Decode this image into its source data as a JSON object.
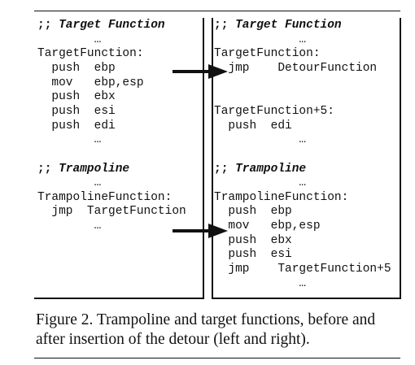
{
  "left_panel": {
    "lines": [
      {
        "text": ";; ",
        "emph": "Target Function"
      },
      {
        "text": "        …"
      },
      {
        "text": "TargetFunction:"
      },
      {
        "text": "  push  ebp"
      },
      {
        "text": "  mov   ebp,esp"
      },
      {
        "text": "  push  ebx"
      },
      {
        "text": "  push  esi"
      },
      {
        "text": "  push  edi"
      },
      {
        "text": "        …"
      },
      {
        "text": ""
      },
      {
        "text": ";; ",
        "emph": "Trampoline"
      },
      {
        "text": "        …"
      },
      {
        "text": "TrampolineFunction:"
      },
      {
        "text": "  jmp  TargetFunction"
      },
      {
        "text": "        …"
      }
    ]
  },
  "right_panel": {
    "lines": [
      {
        "text": ";; ",
        "emph": "Target Function"
      },
      {
        "text": "            …"
      },
      {
        "text": "TargetFunction:"
      },
      {
        "text": "  jmp    DetourFunction"
      },
      {
        "text": ""
      },
      {
        "text": ""
      },
      {
        "text": "TargetFunction+5:"
      },
      {
        "text": "  push  edi"
      },
      {
        "text": "            …"
      },
      {
        "text": ""
      },
      {
        "text": ";; ",
        "emph": "Trampoline"
      },
      {
        "text": "            …"
      },
      {
        "text": "TrampolineFunction:"
      },
      {
        "text": "  push  ebp"
      },
      {
        "text": "  mov   ebp,esp"
      },
      {
        "text": "  push  ebx"
      },
      {
        "text": "  push  esi"
      },
      {
        "text": "  jmp    TargetFunction+5"
      },
      {
        "text": "            …"
      }
    ]
  },
  "caption": "Figure 2.  Trampoline and target functions, before and after insertion of the detour (left and right)."
}
